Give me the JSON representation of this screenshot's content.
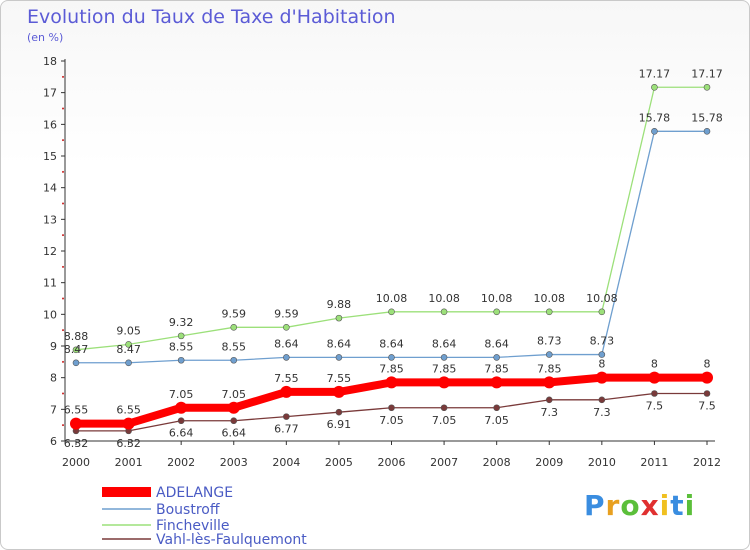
{
  "title": "Evolution du Taux de Taxe d'Habitation",
  "subtitle": "(en %)",
  "logo": {
    "letters": [
      "P",
      "r",
      "o",
      "x",
      "i",
      "t",
      "i"
    ],
    "colors": [
      "#3a8de0",
      "#e8a020",
      "#5bbf3a",
      "#e03030",
      "#f0c020",
      "#3a8de0",
      "#5bbf3a"
    ]
  },
  "chart_data": {
    "type": "line",
    "x": [
      2000,
      2001,
      2002,
      2003,
      2004,
      2005,
      2006,
      2007,
      2008,
      2009,
      2010,
      2011,
      2012
    ],
    "ylim": [
      6,
      18
    ],
    "yticks": [
      6,
      7,
      8,
      9,
      10,
      11,
      12,
      13,
      14,
      15,
      16,
      17,
      18
    ],
    "grid": false,
    "legend": "bottom-left",
    "series": [
      {
        "name": "ADELANGE",
        "color": "#ff0000",
        "values": [
          6.55,
          6.55,
          7.05,
          7.05,
          7.55,
          7.55,
          7.85,
          7.85,
          7.85,
          7.85,
          8,
          8,
          8
        ],
        "labels": [
          "6.55",
          "6.55",
          "7.05",
          "7.05",
          "7.55",
          "7.55",
          "7.85",
          "7.85",
          "7.85",
          "7.85",
          "8",
          "8",
          "8"
        ]
      },
      {
        "name": "Boustroff",
        "color": "#6f9fcf",
        "values": [
          8.47,
          8.47,
          8.55,
          8.55,
          8.64,
          8.64,
          8.64,
          8.64,
          8.64,
          8.73,
          8.73,
          15.78,
          15.78
        ],
        "labels": [
          "8.47",
          "8.47",
          "8.55",
          "8.55",
          "8.64",
          "8.64",
          "8.64",
          "8.64",
          "8.64",
          "8.73",
          "8.73",
          "15.78",
          "15.78"
        ]
      },
      {
        "name": "Fincheville",
        "color": "#9ce07a",
        "values": [
          8.88,
          9.05,
          9.32,
          9.59,
          9.59,
          9.88,
          10.08,
          10.08,
          10.08,
          10.08,
          10.08,
          17.17,
          17.17
        ],
        "labels": [
          "8.88",
          "9.05",
          "9.32",
          "9.59",
          "9.59",
          "9.88",
          "10.08",
          "10.08",
          "10.08",
          "10.08",
          "10.08",
          "17.17",
          "17.17"
        ]
      },
      {
        "name": "Vahl-lès-Faulquemont",
        "color": "#7a3a3a",
        "values": [
          6.32,
          6.32,
          6.64,
          6.64,
          6.77,
          6.91,
          7.05,
          7.05,
          7.05,
          7.3,
          7.3,
          7.5,
          7.5
        ],
        "labels": [
          "6.32",
          "6.32",
          "6.64",
          "6.64",
          "6.77",
          "6.91",
          "7.05",
          "7.05",
          "7.05",
          "7.3",
          "7.3",
          "7.5",
          "7.5"
        ]
      }
    ]
  }
}
